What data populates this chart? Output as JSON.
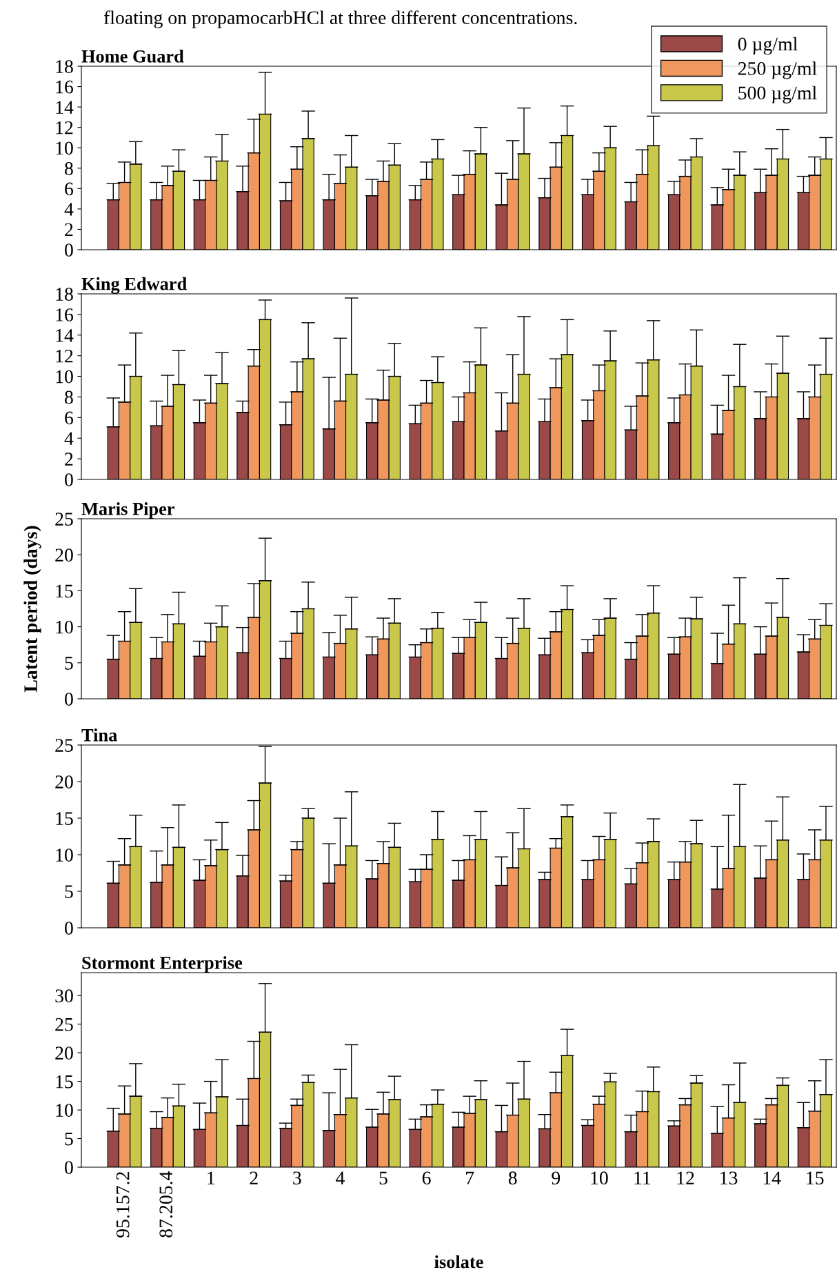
{
  "chart_data": [
    {
      "type": "bar",
      "title": "Home Guard",
      "categories": [
        "95.157.2",
        "87.205.4",
        "1",
        "2",
        "3",
        "4",
        "5",
        "6",
        "7",
        "8",
        "9",
        "10",
        "11",
        "12",
        "13",
        "14",
        "15"
      ],
      "tick_labels": "y",
      "ylim": [
        0,
        18
      ],
      "yticks": [
        0,
        2,
        4,
        6,
        8,
        10,
        12,
        14,
        16,
        18
      ],
      "legend": "top right",
      "grid": false,
      "annotations": [
        "floating on propamocarbHCl at three different concentrations."
      ],
      "series": [
        {
          "name": "0 µg/ml",
          "color": "#9c4a48",
          "values": [
            4.9,
            4.9,
            4.9,
            5.7,
            4.8,
            4.9,
            5.3,
            4.9,
            5.4,
            4.4,
            5.1,
            5.4,
            4.7,
            5.4,
            4.4,
            5.6,
            5.6
          ],
          "errors": [
            [
              4.9,
              6.5
            ],
            [
              4.9,
              6.6
            ],
            [
              4.9,
              6.8
            ],
            [
              5.7,
              8.2
            ],
            [
              4.8,
              6.6
            ],
            [
              4.9,
              7.4
            ],
            [
              5.3,
              6.9
            ],
            [
              4.9,
              6.3
            ],
            [
              5.4,
              7.3
            ],
            [
              4.4,
              7.5
            ],
            [
              5.1,
              7.0
            ],
            [
              5.4,
              6.9
            ],
            [
              4.7,
              6.6
            ],
            [
              5.4,
              6.7
            ],
            [
              4.4,
              6.1
            ],
            [
              5.6,
              7.9
            ],
            [
              5.6,
              7.2
            ]
          ]
        },
        {
          "name": "250 µg/ml",
          "color": "#f0975e",
          "values": [
            6.6,
            6.3,
            6.8,
            9.5,
            7.9,
            6.5,
            6.7,
            6.9,
            7.4,
            6.9,
            8.1,
            7.7,
            7.4,
            7.2,
            5.9,
            7.3,
            7.3
          ],
          "errors": [
            [
              6.6,
              8.6
            ],
            [
              6.3,
              8.2
            ],
            [
              6.8,
              9.1
            ],
            [
              9.5,
              12.8
            ],
            [
              7.9,
              10.1
            ],
            [
              6.5,
              9.3
            ],
            [
              6.7,
              8.7
            ],
            [
              6.9,
              8.6
            ],
            [
              7.4,
              9.7
            ],
            [
              6.9,
              10.7
            ],
            [
              8.1,
              10.5
            ],
            [
              7.7,
              9.5
            ],
            [
              7.4,
              9.8
            ],
            [
              7.2,
              8.8
            ],
            [
              5.9,
              7.9
            ],
            [
              7.3,
              9.9
            ],
            [
              7.3,
              9.1
            ]
          ]
        },
        {
          "name": "500 µg/ml",
          "color": "#c9c84a",
          "values": [
            8.4,
            7.7,
            8.7,
            13.3,
            10.9,
            8.1,
            8.3,
            8.9,
            9.4,
            9.4,
            11.2,
            10.0,
            10.2,
            9.1,
            7.3,
            8.9,
            8.9
          ],
          "errors": [
            [
              8.4,
              10.6
            ],
            [
              7.7,
              9.8
            ],
            [
              8.7,
              11.3
            ],
            [
              13.3,
              17.4
            ],
            [
              10.9,
              13.6
            ],
            [
              8.1,
              11.2
            ],
            [
              8.3,
              10.4
            ],
            [
              8.9,
              10.8
            ],
            [
              9.4,
              12.0
            ],
            [
              9.4,
              13.9
            ],
            [
              11.2,
              14.1
            ],
            [
              10.0,
              12.1
            ],
            [
              10.2,
              13.1
            ],
            [
              9.1,
              10.9
            ],
            [
              7.3,
              9.6
            ],
            [
              8.9,
              11.8
            ],
            [
              8.9,
              11.0
            ]
          ]
        }
      ]
    },
    {
      "type": "bar",
      "title": "King Edward",
      "categories": [
        "95.157.2",
        "87.205.4",
        "1",
        "2",
        "3",
        "4",
        "5",
        "6",
        "7",
        "8",
        "9",
        "10",
        "11",
        "12",
        "13",
        "14",
        "15"
      ],
      "tick_labels": "y",
      "ylim": [
        0,
        18
      ],
      "yticks": [
        0,
        2,
        4,
        6,
        8,
        10,
        12,
        14,
        16,
        18
      ],
      "grid": false,
      "series": [
        {
          "color": "#9c4a48",
          "values": [
            5.1,
            5.2,
            5.5,
            6.5,
            5.3,
            4.9,
            5.5,
            5.4,
            5.6,
            4.7,
            5.6,
            5.7,
            4.8,
            5.5,
            4.4,
            5.9,
            5.9
          ],
          "errors": [
            [
              5.1,
              7.9
            ],
            [
              5.2,
              7.6
            ],
            [
              5.5,
              7.7
            ],
            [
              6.5,
              7.6
            ],
            [
              5.3,
              7.5
            ],
            [
              4.9,
              9.9
            ],
            [
              5.5,
              7.8
            ],
            [
              5.4,
              7.2
            ],
            [
              5.6,
              8.0
            ],
            [
              4.7,
              8.4
            ],
            [
              5.6,
              7.8
            ],
            [
              5.7,
              7.7
            ],
            [
              4.8,
              7.1
            ],
            [
              5.5,
              7.9
            ],
            [
              4.4,
              7.2
            ],
            [
              5.9,
              8.5
            ],
            [
              5.9,
              8.5
            ]
          ]
        },
        {
          "color": "#f0975e",
          "values": [
            7.5,
            7.1,
            7.4,
            11.0,
            8.5,
            7.6,
            7.7,
            7.4,
            8.4,
            7.4,
            8.9,
            8.6,
            8.1,
            8.2,
            6.7,
            8.0,
            8.0
          ],
          "errors": [
            [
              7.5,
              11.1
            ],
            [
              7.1,
              10.1
            ],
            [
              7.4,
              10.1
            ],
            [
              11.0,
              12.6
            ],
            [
              8.5,
              11.4
            ],
            [
              7.6,
              13.7
            ],
            [
              7.7,
              10.6
            ],
            [
              7.4,
              9.6
            ],
            [
              8.4,
              11.4
            ],
            [
              7.4,
              12.1
            ],
            [
              8.9,
              11.7
            ],
            [
              8.6,
              11.1
            ],
            [
              8.1,
              11.3
            ],
            [
              8.2,
              11.2
            ],
            [
              6.7,
              10.1
            ],
            [
              8.0,
              11.2
            ],
            [
              8.0,
              11.1
            ]
          ]
        },
        {
          "color": "#c9c84a",
          "values": [
            10.0,
            9.2,
            9.3,
            15.5,
            11.7,
            10.2,
            10.0,
            9.4,
            11.1,
            10.2,
            12.1,
            11.5,
            11.6,
            11.0,
            9.0,
            10.3,
            10.2
          ],
          "errors": [
            [
              10.0,
              14.2
            ],
            [
              9.2,
              12.5
            ],
            [
              9.3,
              12.3
            ],
            [
              15.5,
              17.4
            ],
            [
              11.7,
              15.2
            ],
            [
              10.2,
              17.6
            ],
            [
              10.0,
              13.2
            ],
            [
              9.4,
              11.9
            ],
            [
              11.1,
              14.7
            ],
            [
              10.2,
              15.8
            ],
            [
              12.1,
              15.5
            ],
            [
              11.5,
              14.4
            ],
            [
              11.6,
              15.4
            ],
            [
              11.0,
              14.5
            ],
            [
              9.0,
              13.1
            ],
            [
              10.3,
              13.9
            ],
            [
              10.2,
              13.7
            ]
          ]
        }
      ]
    },
    {
      "type": "bar",
      "title": "Maris Piper",
      "ylabel": "Latent period (days)",
      "categories": [
        "95.157.2",
        "87.205.4",
        "1",
        "2",
        "3",
        "4",
        "5",
        "6",
        "7",
        "8",
        "9",
        "10",
        "11",
        "12",
        "13",
        "14",
        "15"
      ],
      "tick_labels": "y",
      "ylim": [
        0,
        25
      ],
      "yticks": [
        0,
        5,
        10,
        15,
        20,
        25
      ],
      "grid": false,
      "series": [
        {
          "color": "#9c4a48",
          "values": [
            5.5,
            5.6,
            5.9,
            6.4,
            5.6,
            5.8,
            6.1,
            5.8,
            6.3,
            5.6,
            6.1,
            6.4,
            5.5,
            6.2,
            4.9,
            6.2,
            6.5
          ],
          "errors": [
            [
              5.5,
              8.8
            ],
            [
              5.6,
              8.5
            ],
            [
              5.9,
              8.0
            ],
            [
              6.4,
              9.9
            ],
            [
              5.6,
              8.0
            ],
            [
              5.8,
              9.2
            ],
            [
              6.1,
              8.6
            ],
            [
              5.8,
              7.5
            ],
            [
              6.3,
              8.5
            ],
            [
              5.6,
              8.5
            ],
            [
              6.1,
              8.4
            ],
            [
              6.4,
              8.2
            ],
            [
              5.5,
              7.8
            ],
            [
              6.2,
              8.5
            ],
            [
              4.9,
              9.1
            ],
            [
              6.2,
              10.0
            ],
            [
              6.5,
              8.9
            ]
          ]
        },
        {
          "color": "#f0975e",
          "values": [
            8.0,
            7.9,
            7.9,
            11.3,
            9.1,
            7.7,
            8.3,
            7.8,
            8.5,
            7.7,
            9.3,
            8.8,
            8.7,
            8.6,
            7.6,
            8.7,
            8.3
          ],
          "errors": [
            [
              8.0,
              12.1
            ],
            [
              7.9,
              11.7
            ],
            [
              7.9,
              10.5
            ],
            [
              11.3,
              16.0
            ],
            [
              9.1,
              12.1
            ],
            [
              7.7,
              11.6
            ],
            [
              8.3,
              11.2
            ],
            [
              7.8,
              9.7
            ],
            [
              8.5,
              11.0
            ],
            [
              7.7,
              11.2
            ],
            [
              9.3,
              12.1
            ],
            [
              8.8,
              11.0
            ],
            [
              8.7,
              11.7
            ],
            [
              8.6,
              11.2
            ],
            [
              7.6,
              13.0
            ],
            [
              8.7,
              13.3
            ],
            [
              8.3,
              11.0
            ]
          ]
        },
        {
          "color": "#c9c84a",
          "values": [
            10.6,
            10.4,
            10.0,
            16.4,
            12.5,
            9.7,
            10.5,
            9.8,
            10.6,
            9.8,
            12.4,
            11.2,
            11.9,
            11.1,
            10.4,
            11.3,
            10.2
          ],
          "errors": [
            [
              10.6,
              15.3
            ],
            [
              10.4,
              14.8
            ],
            [
              10.0,
              12.9
            ],
            [
              16.4,
              22.3
            ],
            [
              12.5,
              16.2
            ],
            [
              9.7,
              14.1
            ],
            [
              10.5,
              13.9
            ],
            [
              9.8,
              12.0
            ],
            [
              10.6,
              13.4
            ],
            [
              9.8,
              13.9
            ],
            [
              12.4,
              15.7
            ],
            [
              11.2,
              13.9
            ],
            [
              11.9,
              15.7
            ],
            [
              11.1,
              14.1
            ],
            [
              10.4,
              16.8
            ],
            [
              11.3,
              16.7
            ],
            [
              10.2,
              13.2
            ]
          ]
        }
      ]
    },
    {
      "type": "bar",
      "title": "Tina",
      "categories": [
        "95.157.2",
        "87.205.4",
        "1",
        "2",
        "3",
        "4",
        "5",
        "6",
        "7",
        "8",
        "9",
        "10",
        "11",
        "12",
        "13",
        "14",
        "15"
      ],
      "tick_labels": "y",
      "ylim": [
        0,
        25
      ],
      "yticks": [
        0,
        5,
        10,
        15,
        20,
        25
      ],
      "grid": false,
      "series": [
        {
          "color": "#9c4a48",
          "values": [
            6.1,
            6.2,
            6.5,
            7.1,
            6.4,
            6.1,
            6.7,
            6.3,
            6.5,
            5.8,
            6.6,
            6.6,
            6.0,
            6.6,
            5.3,
            6.8,
            6.6
          ],
          "errors": [
            [
              6.1,
              9.1
            ],
            [
              6.2,
              10.5
            ],
            [
              6.5,
              9.3
            ],
            [
              7.1,
              9.9
            ],
            [
              6.4,
              7.2
            ],
            [
              6.1,
              11.5
            ],
            [
              6.7,
              9.2
            ],
            [
              6.3,
              8.0
            ],
            [
              6.5,
              9.2
            ],
            [
              5.8,
              9.7
            ],
            [
              6.6,
              7.6
            ],
            [
              6.6,
              9.2
            ],
            [
              6.0,
              8.1
            ],
            [
              6.6,
              9.0
            ],
            [
              5.3,
              11.1
            ],
            [
              6.8,
              11.2
            ],
            [
              6.6,
              10.1
            ]
          ]
        },
        {
          "color": "#f0975e",
          "values": [
            8.6,
            8.6,
            8.5,
            13.4,
            10.7,
            8.6,
            8.8,
            8.0,
            9.3,
            8.2,
            10.9,
            9.3,
            8.9,
            9.0,
            8.1,
            9.3,
            9.3
          ],
          "errors": [
            [
              8.6,
              12.2
            ],
            [
              8.6,
              13.7
            ],
            [
              8.5,
              12.0
            ],
            [
              13.4,
              17.4
            ],
            [
              10.7,
              11.8
            ],
            [
              8.6,
              15.0
            ],
            [
              8.8,
              11.8
            ],
            [
              8.0,
              10.0
            ],
            [
              9.3,
              12.6
            ],
            [
              8.2,
              13.0
            ],
            [
              10.9,
              12.2
            ],
            [
              9.3,
              12.5
            ],
            [
              8.9,
              11.6
            ],
            [
              9.0,
              11.8
            ],
            [
              8.1,
              15.4
            ],
            [
              9.3,
              14.6
            ],
            [
              9.3,
              13.4
            ]
          ]
        },
        {
          "color": "#c9c84a",
          "values": [
            11.1,
            11.0,
            10.7,
            19.8,
            15.0,
            11.2,
            11.0,
            12.1,
            12.1,
            10.8,
            15.2,
            12.1,
            11.8,
            11.5,
            11.1,
            12.0,
            12.0
          ],
          "errors": [
            [
              11.1,
              15.4
            ],
            [
              11.0,
              16.8
            ],
            [
              10.7,
              14.4
            ],
            [
              19.8,
              24.8
            ],
            [
              15.0,
              16.3
            ],
            [
              11.2,
              18.6
            ],
            [
              11.0,
              14.3
            ],
            [
              12.1,
              15.9
            ],
            [
              12.1,
              15.9
            ],
            [
              10.8,
              16.3
            ],
            [
              15.2,
              16.8
            ],
            [
              12.1,
              15.7
            ],
            [
              11.8,
              14.9
            ],
            [
              11.5,
              14.7
            ],
            [
              11.1,
              19.6
            ],
            [
              12.0,
              17.9
            ],
            [
              12.0,
              16.6
            ]
          ]
        }
      ]
    },
    {
      "type": "bar",
      "title": "Stormont Enterprise",
      "xlabel": "isolate",
      "categories": [
        "95.157.2",
        "87.205.4",
        "1",
        "2",
        "3",
        "4",
        "5",
        "6",
        "7",
        "8",
        "9",
        "10",
        "11",
        "12",
        "13",
        "14",
        "15"
      ],
      "ylim": [
        0,
        34
      ],
      "yticks": [
        0,
        5,
        10,
        15,
        20,
        25,
        30
      ],
      "grid": false,
      "series": [
        {
          "color": "#9c4a48",
          "values": [
            6.3,
            6.8,
            6.6,
            7.3,
            6.8,
            6.4,
            7.0,
            6.6,
            7.0,
            6.2,
            6.7,
            7.3,
            6.2,
            7.2,
            5.9,
            7.6,
            6.9
          ],
          "errors": [
            [
              6.3,
              10.3
            ],
            [
              6.8,
              9.7
            ],
            [
              6.6,
              11.2
            ],
            [
              7.3,
              11.9
            ],
            [
              6.8,
              7.7
            ],
            [
              6.4,
              13.0
            ],
            [
              7.0,
              10.1
            ],
            [
              6.6,
              8.4
            ],
            [
              7.0,
              9.6
            ],
            [
              6.2,
              10.8
            ],
            [
              6.7,
              9.2
            ],
            [
              7.3,
              8.3
            ],
            [
              6.2,
              9.1
            ],
            [
              7.2,
              8.1
            ],
            [
              5.9,
              10.6
            ],
            [
              7.6,
              8.4
            ],
            [
              6.9,
              11.3
            ]
          ]
        },
        {
          "color": "#f0975e",
          "values": [
            9.3,
            8.7,
            9.5,
            15.5,
            10.8,
            9.2,
            9.3,
            8.8,
            9.4,
            9.1,
            13.0,
            11.0,
            9.7,
            10.9,
            8.6,
            10.9,
            9.8
          ],
          "errors": [
            [
              9.3,
              14.2
            ],
            [
              8.7,
              12.1
            ],
            [
              9.5,
              15.0
            ],
            [
              15.5,
              22.0
            ],
            [
              10.8,
              11.9
            ],
            [
              9.2,
              17.1
            ],
            [
              9.3,
              13.1
            ],
            [
              8.8,
              10.9
            ],
            [
              9.4,
              12.4
            ],
            [
              9.1,
              14.7
            ],
            [
              13.0,
              16.6
            ],
            [
              11.0,
              12.4
            ],
            [
              9.7,
              13.3
            ],
            [
              10.9,
              12.0
            ],
            [
              8.6,
              14.4
            ],
            [
              10.9,
              12.0
            ],
            [
              9.8,
              15.1
            ]
          ]
        },
        {
          "color": "#c9c84a",
          "values": [
            12.4,
            10.7,
            12.3,
            23.6,
            14.8,
            12.1,
            11.8,
            11.0,
            11.8,
            11.9,
            19.5,
            14.9,
            13.2,
            14.7,
            11.3,
            14.3,
            12.7
          ],
          "errors": [
            [
              12.4,
              18.1
            ],
            [
              10.7,
              14.5
            ],
            [
              12.3,
              18.8
            ],
            [
              23.6,
              32.1
            ],
            [
              14.8,
              16.1
            ],
            [
              12.1,
              21.4
            ],
            [
              11.8,
              15.9
            ],
            [
              11.0,
              13.5
            ],
            [
              11.8,
              15.1
            ],
            [
              11.9,
              18.5
            ],
            [
              19.5,
              24.1
            ],
            [
              14.9,
              16.4
            ],
            [
              13.2,
              17.5
            ],
            [
              14.7,
              16.0
            ],
            [
              11.3,
              18.2
            ],
            [
              14.3,
              15.6
            ],
            [
              12.7,
              18.8
            ]
          ]
        }
      ]
    }
  ]
}
